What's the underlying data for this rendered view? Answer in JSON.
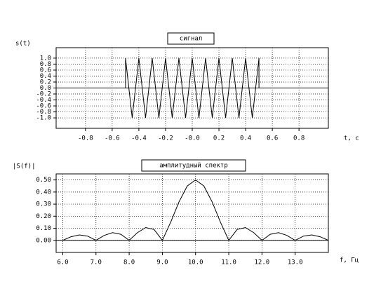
{
  "chart_data": [
    {
      "type": "line",
      "title": "сигнал",
      "ylabel": "s(t)",
      "xlabel": "t, c",
      "color": "#000000",
      "grid": true,
      "x": [
        -1.0,
        -0.5,
        -0.5,
        -0.45,
        -0.4,
        -0.35,
        -0.3,
        -0.25,
        -0.2,
        -0.15,
        -0.1,
        -0.05,
        0.0,
        0.05,
        0.1,
        0.15,
        0.2,
        0.25,
        0.3,
        0.35,
        0.4,
        0.45,
        0.5,
        0.5,
        1.0
      ],
      "values": [
        0,
        0,
        1,
        -1,
        1,
        -1,
        1,
        -1,
        1,
        -1,
        1,
        -1,
        1,
        -1,
        1,
        -1,
        1,
        -1,
        1,
        -1,
        1,
        -1,
        1,
        0,
        0
      ],
      "xlim": [
        -1.02,
        1.02
      ],
      "xticks": [
        -0.8,
        -0.6,
        -0.4,
        -0.2,
        {
          "value": 0,
          "label": "-0.0"
        },
        0.2,
        0.4,
        0.6,
        0.8
      ],
      "ylim": [
        -1.35,
        1.35
      ],
      "yticks": [
        {
          "value": 1,
          "label": "1.0"
        },
        0.8,
        0.6,
        0.4,
        0.2,
        {
          "value": 0,
          "label": "0.0"
        },
        -0.2,
        -0.4,
        -0.6,
        -0.8,
        {
          "value": -1,
          "label": "-1.0"
        }
      ]
    },
    {
      "type": "line",
      "title": "амплитудный спектр",
      "ylabel": "|S(f)|",
      "xlabel": "f, Гц",
      "color": "#000000",
      "grid": true,
      "x": [
        6.0,
        6.25,
        6.5,
        6.75,
        7.0,
        7.25,
        7.5,
        7.75,
        8.0,
        8.25,
        8.5,
        8.75,
        9.0,
        9.25,
        9.5,
        9.75,
        10.0,
        10.25,
        10.5,
        10.75,
        11.0,
        11.25,
        11.5,
        11.75,
        12.0,
        12.25,
        12.5,
        12.75,
        13.0,
        13.25,
        13.5,
        13.75,
        14.0
      ],
      "values": [
        0,
        0.03,
        0.045,
        0.035,
        0,
        0.041,
        0.064,
        0.05,
        0,
        0.064,
        0.106,
        0.09,
        0,
        0.15,
        0.318,
        0.45,
        0.5,
        0.45,
        0.318,
        0.15,
        0,
        0.09,
        0.106,
        0.064,
        0,
        0.05,
        0.064,
        0.041,
        0,
        0.035,
        0.045,
        0.03,
        0
      ],
      "xlim": [
        5.8,
        14.0
      ],
      "xticks": [
        {
          "value": 6,
          "label": "6.0"
        },
        {
          "value": 7,
          "label": "7.0"
        },
        {
          "value": 8,
          "label": "8.0"
        },
        {
          "value": 9,
          "label": "9.0"
        },
        {
          "value": 10,
          "label": "10.0"
        },
        {
          "value": 11,
          "label": "11.0"
        },
        {
          "value": 12,
          "label": "12.0"
        },
        {
          "value": 13,
          "label": "13.0"
        }
      ],
      "ylim": [
        -0.1,
        0.55
      ],
      "yticks": [
        {
          "value": 0.5,
          "label": "0.50"
        },
        {
          "value": 0.4,
          "label": "0.40"
        },
        {
          "value": 0.3,
          "label": "0.30"
        },
        {
          "value": 0.2,
          "label": "0.20"
        },
        {
          "value": 0.1,
          "label": "0.10"
        },
        {
          "value": 0,
          "label": "0.00"
        }
      ]
    }
  ]
}
